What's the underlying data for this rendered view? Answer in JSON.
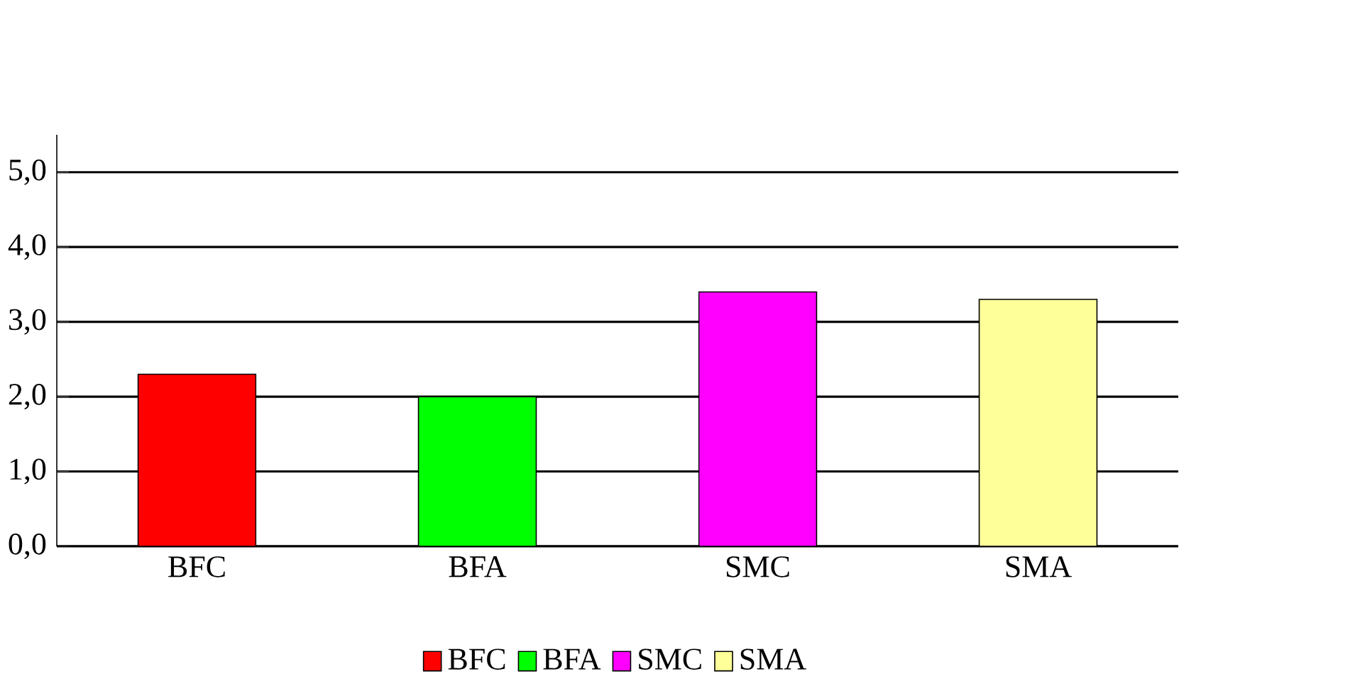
{
  "chart_data": {
    "type": "bar",
    "categories": [
      "BFC",
      "BFA",
      "SMC",
      "SMA"
    ],
    "series": [
      {
        "name": "BFC",
        "color": "#ff0000",
        "values": [
          2.3,
          null,
          null,
          null
        ]
      },
      {
        "name": "BFA",
        "color": "#00ff00",
        "values": [
          null,
          2.0,
          null,
          null
        ]
      },
      {
        "name": "SMC",
        "color": "#ff00ff",
        "values": [
          null,
          null,
          3.4,
          null
        ]
      },
      {
        "name": "SMA",
        "color": "#ffff99",
        "values": [
          null,
          null,
          null,
          3.3
        ]
      }
    ],
    "ylim": [
      0,
      5.5
    ],
    "yticks": [
      {
        "value": 0,
        "label": "0,0"
      },
      {
        "value": 1,
        "label": "1,0"
      },
      {
        "value": 2,
        "label": "2,0"
      },
      {
        "value": 3,
        "label": "3,0"
      },
      {
        "value": 4,
        "label": "4,0"
      },
      {
        "value": 5,
        "label": "5,0"
      }
    ],
    "grid": "y",
    "legend": "bottom"
  }
}
